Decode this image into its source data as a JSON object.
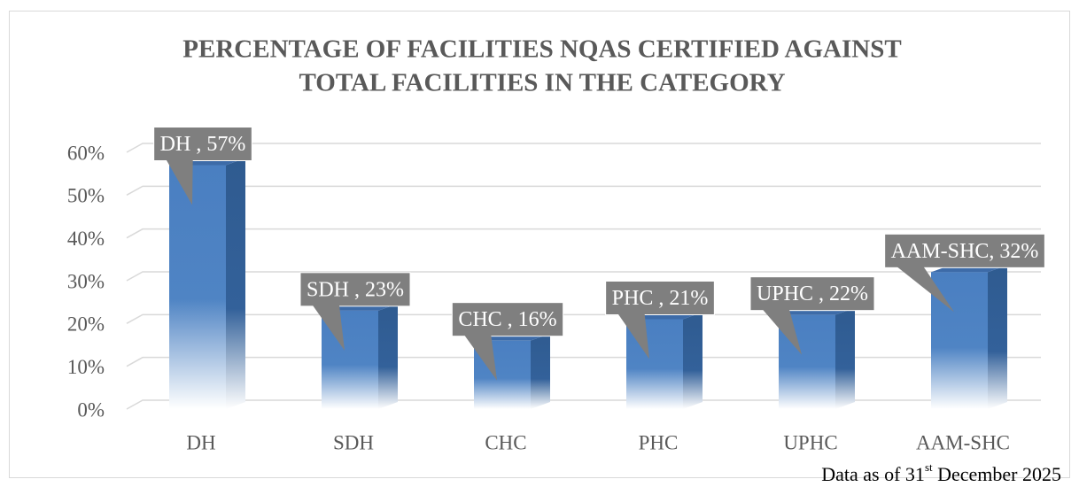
{
  "chart_data": {
    "type": "bar",
    "title": [
      "PERCENTAGE OF FACILITIES NQAS CERTIFIED AGAINST",
      "TOTAL FACILITIES IN THE CATEGORY"
    ],
    "categories": [
      "DH",
      "SDH",
      "CHC",
      "PHC",
      "UPHC",
      "AAM-SHC"
    ],
    "values": [
      57,
      23,
      16,
      21,
      22,
      32
    ],
    "value_labels": [
      "DH , 57%",
      "SDH , 23%",
      "CHC , 16%",
      "PHC , 21%",
      "UPHC , 22%",
      "AAM-SHC, 32%"
    ],
    "color": "#4a7fc1",
    "ylim": [
      0,
      60
    ],
    "yticks": [
      {
        "value": 0,
        "label": "0%"
      },
      {
        "value": 10,
        "label": "10%"
      },
      {
        "value": 20,
        "label": "20%"
      },
      {
        "value": 30,
        "label": "30%"
      },
      {
        "value": 40,
        "label": "40%"
      },
      {
        "value": 50,
        "label": "50%"
      },
      {
        "value": 60,
        "label": "60%"
      }
    ],
    "grid": true,
    "footnote": [
      "Data as of 31",
      "st",
      " December 2025"
    ]
  }
}
